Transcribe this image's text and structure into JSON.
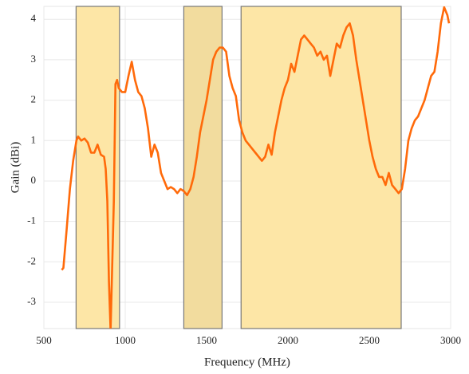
{
  "chart_data": {
    "type": "line",
    "xlabel": "Frequency (MHz)",
    "ylabel": "Gain (dBi)",
    "xlim": [
      500,
      3000
    ],
    "xticks": [
      500,
      1000,
      1500,
      2000,
      2500,
      3000
    ],
    "ylim": [
      -3.65,
      4.32
    ],
    "yticks": [
      -3,
      -2,
      -1,
      0,
      1,
      2,
      3,
      4
    ],
    "grid": true,
    "color": "#ff6a0a",
    "bands": [
      {
        "x": [
          698,
          965
        ],
        "color": "#fde6a6"
      },
      {
        "x": [
          1360,
          1595
        ],
        "color": "#f2dc9e"
      },
      {
        "x": [
          1712,
          2696
        ],
        "color": "#fde6a6"
      }
    ],
    "x": [
      610,
      620,
      640,
      660,
      680,
      700,
      710,
      730,
      750,
      770,
      790,
      810,
      830,
      850,
      870,
      880,
      890,
      900,
      910,
      930,
      940,
      950,
      960,
      980,
      1000,
      1020,
      1040,
      1060,
      1080,
      1100,
      1120,
      1140,
      1160,
      1180,
      1200,
      1220,
      1240,
      1260,
      1280,
      1300,
      1320,
      1340,
      1360,
      1380,
      1400,
      1420,
      1440,
      1460,
      1480,
      1500,
      1520,
      1540,
      1560,
      1580,
      1600,
      1620,
      1640,
      1660,
      1680,
      1700,
      1720,
      1740,
      1760,
      1780,
      1800,
      1820,
      1840,
      1860,
      1880,
      1900,
      1920,
      1940,
      1960,
      1980,
      2000,
      2020,
      2040,
      2060,
      2080,
      2100,
      2120,
      2140,
      2160,
      2180,
      2200,
      2220,
      2240,
      2260,
      2280,
      2300,
      2320,
      2340,
      2360,
      2380,
      2400,
      2420,
      2440,
      2460,
      2480,
      2500,
      2520,
      2540,
      2560,
      2580,
      2600,
      2620,
      2640,
      2660,
      2680,
      2700,
      2720,
      2740,
      2760,
      2780,
      2800,
      2820,
      2840,
      2860,
      2880,
      2900,
      2920,
      2940,
      2960,
      2980,
      2990
    ],
    "values": [
      -2.2,
      -2.15,
      -1.2,
      -0.2,
      0.5,
      1.0,
      1.1,
      1.0,
      1.05,
      0.95,
      0.7,
      0.7,
      0.9,
      0.65,
      0.6,
      0.3,
      -0.5,
      -2.5,
      -3.7,
      -0.5,
      2.4,
      2.5,
      2.3,
      2.2,
      2.2,
      2.6,
      2.95,
      2.5,
      2.2,
      2.1,
      1.8,
      1.3,
      0.6,
      0.9,
      0.7,
      0.2,
      0.0,
      -0.2,
      -0.15,
      -0.2,
      -0.3,
      -0.2,
      -0.25,
      -0.35,
      -0.2,
      0.1,
      0.6,
      1.2,
      1.6,
      2.0,
      2.5,
      3.0,
      3.2,
      3.3,
      3.3,
      3.2,
      2.6,
      2.3,
      2.1,
      1.5,
      1.2,
      1.0,
      0.9,
      0.8,
      0.7,
      0.6,
      0.5,
      0.6,
      0.9,
      0.65,
      1.2,
      1.6,
      2.0,
      2.3,
      2.5,
      2.9,
      2.7,
      3.1,
      3.5,
      3.6,
      3.5,
      3.4,
      3.3,
      3.1,
      3.2,
      3.0,
      3.1,
      2.6,
      3.0,
      3.4,
      3.3,
      3.6,
      3.8,
      3.9,
      3.6,
      3.0,
      2.5,
      2.0,
      1.5,
      1.0,
      0.6,
      0.3,
      0.1,
      0.1,
      -0.1,
      0.2,
      -0.1,
      -0.2,
      -0.3,
      -0.2,
      0.3,
      1.0,
      1.3,
      1.5,
      1.6,
      1.8,
      2.0,
      2.3,
      2.6,
      2.7,
      3.2,
      3.9,
      4.3,
      4.1,
      3.9
    ]
  }
}
